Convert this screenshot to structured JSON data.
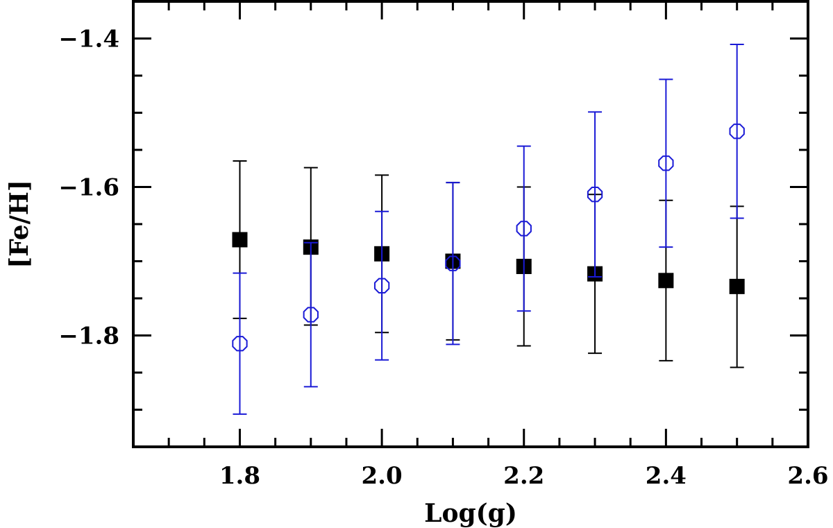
{
  "chart_data": {
    "type": "scatter",
    "xlabel": "Log(g)",
    "ylabel": "[Fe/H]",
    "xlim": [
      1.65,
      2.6
    ],
    "ylim": [
      -1.95,
      -1.35
    ],
    "grid": false,
    "legend": "none",
    "x_ticks": [
      "1.8",
      "2.0",
      "2.2",
      "2.4",
      "2.6"
    ],
    "y_ticks": [
      "-1.4",
      "-1.6",
      "-1.8"
    ],
    "series": [
      {
        "marker": "filled-square",
        "color": "#000000",
        "points": [
          {
            "x": 1.8,
            "y": -1.671,
            "err_lo": -1.777,
            "err_hi": -1.565
          },
          {
            "x": 1.9,
            "y": -1.681,
            "err_lo": -1.786,
            "err_hi": -1.574
          },
          {
            "x": 2.0,
            "y": -1.69,
            "err_lo": -1.796,
            "err_hi": -1.584
          },
          {
            "x": 2.1,
            "y": -1.7,
            "err_lo": -1.806,
            "err_hi": -1.594
          },
          {
            "x": 2.2,
            "y": -1.707,
            "err_lo": -1.814,
            "err_hi": -1.6
          },
          {
            "x": 2.3,
            "y": -1.717,
            "err_lo": -1.824,
            "err_hi": -1.61
          },
          {
            "x": 2.4,
            "y": -1.726,
            "err_lo": -1.834,
            "err_hi": -1.618
          },
          {
            "x": 2.5,
            "y": -1.734,
            "err_lo": -1.843,
            "err_hi": -1.626
          }
        ]
      },
      {
        "marker": "open-octagon",
        "color": "#1a1ad6",
        "points": [
          {
            "x": 1.8,
            "y": -1.811,
            "err_lo": -1.906,
            "err_hi": -1.716
          },
          {
            "x": 1.9,
            "y": -1.772,
            "err_lo": -1.869,
            "err_hi": -1.675
          },
          {
            "x": 2.0,
            "y": -1.733,
            "err_lo": -1.833,
            "err_hi": -1.633
          },
          {
            "x": 2.1,
            "y": -1.703,
            "err_lo": -1.812,
            "err_hi": -1.594
          },
          {
            "x": 2.2,
            "y": -1.656,
            "err_lo": -1.767,
            "err_hi": -1.545
          },
          {
            "x": 2.3,
            "y": -1.61,
            "err_lo": -1.721,
            "err_hi": -1.499
          },
          {
            "x": 2.4,
            "y": -1.568,
            "err_lo": -1.681,
            "err_hi": -1.455
          },
          {
            "x": 2.5,
            "y": -1.525,
            "err_lo": -1.642,
            "err_hi": -1.408
          }
        ]
      }
    ]
  }
}
